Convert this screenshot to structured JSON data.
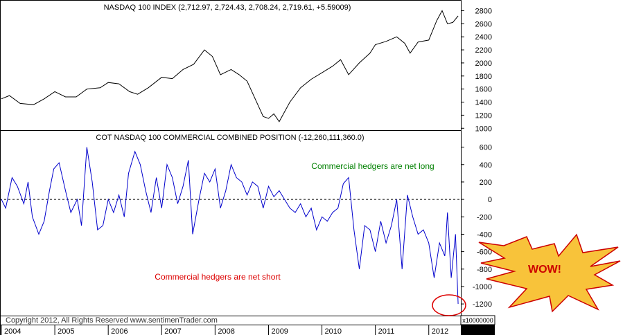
{
  "chart_data": [
    {
      "type": "line",
      "title": "NASDAQ 100 INDEX (2,712.97, 2,724.43, 2,708.24, 2,719.61, +5.59009)",
      "ylim": [
        950,
        2900
      ],
      "yticks": [
        1000,
        1200,
        1400,
        1600,
        1800,
        2000,
        2200,
        2400,
        2600,
        2800
      ],
      "grid": false,
      "series": [
        {
          "color": "#000000",
          "x": [
            2004.0,
            2004.15,
            2004.35,
            2004.6,
            2004.8,
            2005.0,
            2005.2,
            2005.4,
            2005.6,
            2005.85,
            2006.0,
            2006.2,
            2006.4,
            2006.55,
            2006.75,
            2007.0,
            2007.2,
            2007.4,
            2007.6,
            2007.8,
            2007.95,
            2008.1,
            2008.3,
            2008.45,
            2008.6,
            2008.75,
            2008.9,
            2009.0,
            2009.1,
            2009.2,
            2009.4,
            2009.6,
            2009.8,
            2010.0,
            2010.2,
            2010.35,
            2010.5,
            2010.7,
            2010.9,
            2011.0,
            2011.2,
            2011.4,
            2011.55,
            2011.65,
            2011.8,
            2012.0,
            2012.15,
            2012.25,
            2012.35,
            2012.45,
            2012.55
          ],
          "values": [
            1450,
            1500,
            1380,
            1360,
            1450,
            1560,
            1480,
            1480,
            1600,
            1620,
            1700,
            1680,
            1560,
            1520,
            1620,
            1780,
            1760,
            1900,
            1980,
            2200,
            2100,
            1820,
            1900,
            1820,
            1720,
            1450,
            1180,
            1150,
            1220,
            1100,
            1400,
            1620,
            1750,
            1850,
            1950,
            2050,
            1820,
            2000,
            2150,
            2280,
            2330,
            2400,
            2300,
            2150,
            2320,
            2350,
            2650,
            2800,
            2600,
            2620,
            2720
          ]
        }
      ]
    },
    {
      "type": "line",
      "title": "COT NASDAQ 100 COMMERCIAL COMBINED POSITION (-12,260,111,360.0)",
      "ylim": [
        -1350,
        700
      ],
      "yticks": [
        600,
        400,
        200,
        0,
        -200,
        -400,
        -600,
        -800,
        -1000,
        -1200
      ],
      "y_multiplier_label": "x10000000",
      "grid": false,
      "reference_line": 0,
      "series": [
        {
          "color": "#0000cc",
          "x": [
            2004.0,
            2004.08,
            2004.2,
            2004.3,
            2004.42,
            2004.5,
            2004.58,
            2004.7,
            2004.8,
            2004.9,
            2004.98,
            2005.08,
            2005.2,
            2005.3,
            2005.42,
            2005.5,
            2005.6,
            2005.7,
            2005.8,
            2005.9,
            2006.0,
            2006.1,
            2006.2,
            2006.3,
            2006.38,
            2006.5,
            2006.6,
            2006.7,
            2006.8,
            2006.9,
            2007.0,
            2007.1,
            2007.2,
            2007.3,
            2007.4,
            2007.5,
            2007.58,
            2007.7,
            2007.8,
            2007.9,
            2008.0,
            2008.1,
            2008.2,
            2008.3,
            2008.4,
            2008.5,
            2008.6,
            2008.7,
            2008.8,
            2008.9,
            2009.0,
            2009.1,
            2009.2,
            2009.3,
            2009.4,
            2009.5,
            2009.6,
            2009.7,
            2009.8,
            2009.9,
            2010.0,
            2010.1,
            2010.2,
            2010.3,
            2010.4,
            2010.5,
            2010.6,
            2010.7,
            2010.8,
            2010.9,
            2011.0,
            2011.1,
            2011.2,
            2011.3,
            2011.4,
            2011.5,
            2011.6,
            2011.7,
            2011.8,
            2011.9,
            2012.0,
            2012.1,
            2012.2,
            2012.3,
            2012.35,
            2012.42,
            2012.5,
            2012.55
          ],
          "values": [
            0,
            -100,
            250,
            150,
            -50,
            200,
            -200,
            -400,
            -250,
            100,
            350,
            420,
            100,
            -150,
            0,
            -300,
            600,
            200,
            -350,
            -300,
            0,
            -150,
            50,
            -200,
            300,
            550,
            400,
            100,
            -150,
            250,
            -100,
            400,
            250,
            -50,
            150,
            450,
            -400,
            0,
            300,
            200,
            350,
            -100,
            100,
            400,
            250,
            200,
            50,
            200,
            150,
            -100,
            150,
            30,
            100,
            0,
            -100,
            -150,
            -50,
            -200,
            -100,
            -350,
            -200,
            -250,
            -150,
            -100,
            180,
            250,
            -350,
            -800,
            -300,
            -350,
            -600,
            -250,
            -500,
            -300,
            0,
            -800,
            50,
            -200,
            -400,
            -350,
            -500,
            -900,
            -500,
            -650,
            -150,
            -900,
            -400,
            -1200
          ]
        }
      ],
      "annotations": [
        {
          "text": "Commercial hedgers are net long",
          "color": "#008000"
        },
        {
          "text": "Commercial hedgers are net short",
          "color": "#dd0000"
        },
        {
          "text": "WOW!",
          "color": "#cc0000"
        }
      ]
    }
  ],
  "x_axis": {
    "categories": [
      "2004",
      "2005",
      "2006",
      "2007",
      "2008",
      "2009",
      "2010",
      "2011",
      "2012"
    ]
  },
  "colors": {
    "axis": "#000000",
    "starburst_fill": "#f8c33a",
    "starburst_stroke": "#cc0000",
    "circle": "#dd0000"
  },
  "footer": {
    "copyright": "Copyright 2012, All Rights Reserved  www.sentimenTrader.com"
  }
}
